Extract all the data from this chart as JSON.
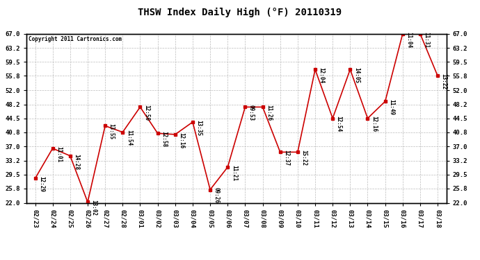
{
  "title": "THSW Index Daily High (°F) 20110319",
  "copyright": "Copyright 2011 Cartronics.com",
  "dates": [
    "02/23",
    "02/24",
    "02/25",
    "02/26",
    "02/27",
    "02/28",
    "03/01",
    "03/02",
    "03/03",
    "03/04",
    "03/05",
    "03/06",
    "03/07",
    "03/08",
    "03/09",
    "03/10",
    "03/11",
    "03/12",
    "03/13",
    "03/14",
    "03/15",
    "03/16",
    "03/17",
    "03/18"
  ],
  "values": [
    28.5,
    36.5,
    34.5,
    22.2,
    42.5,
    40.8,
    47.5,
    40.5,
    40.2,
    43.5,
    25.5,
    31.5,
    47.5,
    47.5,
    35.5,
    35.5,
    57.5,
    44.5,
    57.5,
    44.5,
    49.0,
    67.0,
    67.0,
    55.8
  ],
  "times": [
    "12:29",
    "11:01",
    "14:28",
    "13:02",
    "13:55",
    "11:54",
    "12:50",
    "12:58",
    "12:16",
    "13:35",
    "09:26",
    "11:21",
    "09:53",
    "11:26",
    "12:37",
    "15:22",
    "12:04",
    "12:54",
    "14:05",
    "12:16",
    "11:49",
    "11:04",
    "11:31",
    "13:22"
  ],
  "line_color": "#cc0000",
  "marker_color": "#cc0000",
  "bg_color": "#ffffff",
  "plot_bg_color": "#ffffff",
  "grid_color": "#bbbbbb",
  "title_fontsize": 10,
  "ylabel_values": [
    22.0,
    25.8,
    29.5,
    33.2,
    37.0,
    40.8,
    44.5,
    48.2,
    52.0,
    55.8,
    59.5,
    63.2,
    67.0
  ],
  "ylim": [
    22.0,
    67.0
  ],
  "annotation_fontsize": 5.5,
  "border_color": "#000000",
  "tick_fontsize": 6.5
}
